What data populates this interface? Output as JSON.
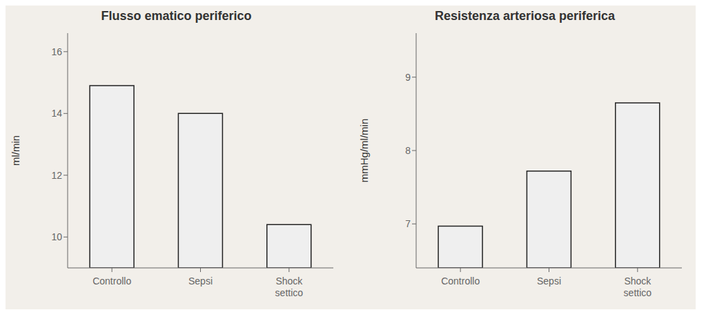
{
  "chart_data": [
    {
      "type": "bar",
      "title": "Flusso ematico periferico",
      "ylabel": "ml/min",
      "categories": [
        "Controllo",
        "Sepsi",
        "Shock\nsettico"
      ],
      "values": [
        14.9,
        14.0,
        10.4
      ],
      "ylim": [
        9.0,
        16.6
      ],
      "yticks": [
        10,
        12,
        14,
        16
      ],
      "color": "#efefef",
      "grid": false
    },
    {
      "type": "bar",
      "title": "Resistenza arteriosa periferica",
      "ylabel": "mmHg/ml/min",
      "categories": [
        "Controllo",
        "Sepsi",
        "Shock\nsettico"
      ],
      "values": [
        6.97,
        7.72,
        8.65
      ],
      "ylim": [
        6.4,
        9.6
      ],
      "yticks": [
        7,
        8,
        9
      ],
      "color": "#efefef",
      "grid": false
    }
  ]
}
